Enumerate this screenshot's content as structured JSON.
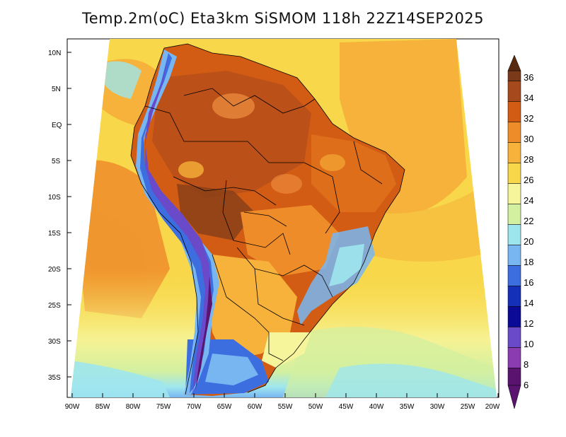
{
  "title": "Temp.2m(oC) Eta3km SiSMOM 118h 22Z14SEP2025",
  "lat_labels": [
    "10N",
    "5N",
    "EQ",
    "5S",
    "10S",
    "15S",
    "20S",
    "25S",
    "30S",
    "35S"
  ],
  "lon_labels": [
    "90W",
    "85W",
    "80W",
    "75W",
    "70W",
    "65W",
    "60W",
    "55W",
    "50W",
    "45W",
    "40W",
    "35W",
    "30W",
    "25W",
    "20W"
  ],
  "colorbar": {
    "labels": [
      "36",
      "34",
      "32",
      "30",
      "28",
      "26",
      "24",
      "22",
      "20",
      "18",
      "16",
      "14",
      "12",
      "10",
      "8",
      "6"
    ],
    "colors": [
      "#5a2a10",
      "#7a3a1a",
      "#a64a1e",
      "#d25c14",
      "#ef8c2a",
      "#f6b23a",
      "#f8d84a",
      "#f6f59c",
      "#d2f0a0",
      "#9ee6ee",
      "#78b6f2",
      "#3c6ee0",
      "#1430b8",
      "#0a0a96",
      "#6a4ac8",
      "#8a3cb0",
      "#5a1470"
    ]
  }
}
